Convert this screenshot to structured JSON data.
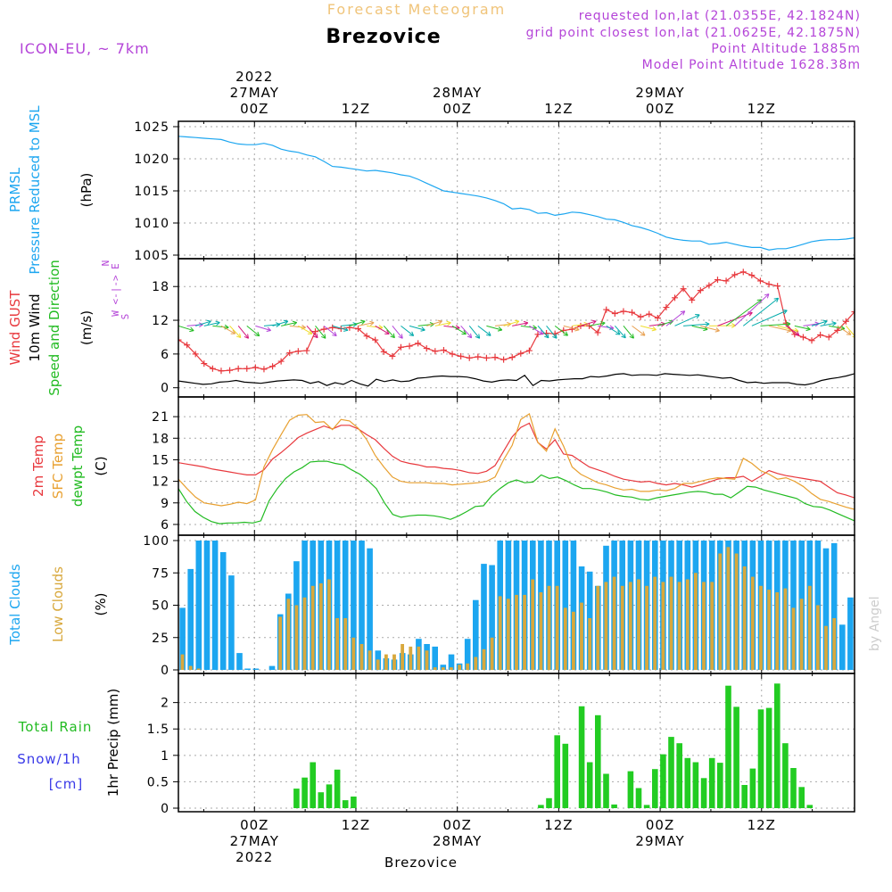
{
  "header": {
    "product_title": "Forecast Meteogram",
    "location": "Brezovice",
    "model": "ICON-EU, ~ 7km",
    "requested": "requested lon,lat (21.0355E, 42.1824N)",
    "closest": "grid point closest lon,lat (21.0625E, 42.1875N)",
    "point_alt": "Point Altitude 1885m",
    "model_alt": "Model Point Altitude 1628.38m",
    "footer_location": "Brezovice",
    "watermark": "by Angel"
  },
  "time_axis": {
    "top_labels": [
      {
        "lines": [
          "2022",
          "27MAY",
          "00Z"
        ],
        "hour": 9
      },
      {
        "lines": [
          "12Z"
        ],
        "hour": 21
      },
      {
        "lines": [
          "28MAY",
          "00Z"
        ],
        "hour": 33
      },
      {
        "lines": [
          "12Z"
        ],
        "hour": 45
      },
      {
        "lines": [
          "29MAY",
          "00Z"
        ],
        "hour": 57
      },
      {
        "lines": [
          "12Z"
        ],
        "hour": 69
      }
    ],
    "bottom_labels": [
      {
        "lines": [
          "00Z",
          "27MAY",
          "2022"
        ],
        "hour": 9
      },
      {
        "lines": [
          "12Z"
        ],
        "hour": 21
      },
      {
        "lines": [
          "00Z",
          "28MAY"
        ],
        "hour": 33
      },
      {
        "lines": [
          "12Z"
        ],
        "hour": 45
      },
      {
        "lines": [
          "00Z",
          "29MAY"
        ],
        "hour": 57
      },
      {
        "lines": [
          "12Z"
        ],
        "hour": 69
      }
    ],
    "grid_hours": [
      9,
      21,
      33,
      45,
      57,
      69
    ]
  },
  "chart_data": [
    {
      "id": "pressure",
      "type": "line",
      "ylabel_lines": [
        {
          "text": "PRMSL",
          "color": "#1ca6f0"
        },
        {
          "text": "Pressure Reduced to MSL",
          "color": "#1ca6f0"
        },
        {
          "text": "(hPa)",
          "color": "#000000"
        }
      ],
      "yticks": [
        "1005",
        "1010",
        "1015",
        "1020",
        "1025"
      ],
      "ylim": [
        1005,
        1025
      ],
      "series": [
        {
          "color": "#1ca6f0",
          "values": [
            1023.5,
            1023.4,
            1023.3,
            1023.2,
            1023.1,
            1023.0,
            1022.6,
            1022.3,
            1022.2,
            1022.2,
            1022.4,
            1022.1,
            1021.5,
            1021.2,
            1021.0,
            1020.6,
            1020.3,
            1019.6,
            1018.8,
            1018.7,
            1018.5,
            1018.3,
            1018.1,
            1018.2,
            1018.0,
            1017.8,
            1017.5,
            1017.3,
            1016.8,
            1016.2,
            1015.6,
            1015.0,
            1014.8,
            1014.6,
            1014.4,
            1014.2,
            1013.9,
            1013.5,
            1013.0,
            1012.2,
            1012.3,
            1012.1,
            1011.5,
            1011.6,
            1011.2,
            1011.4,
            1011.7,
            1011.6,
            1011.3,
            1011.0,
            1010.6,
            1010.5,
            1010.1,
            1009.6,
            1009.3,
            1008.9,
            1008.4,
            1007.8,
            1007.5,
            1007.3,
            1007.2,
            1007.2,
            1006.7,
            1006.8,
            1007.0,
            1006.7,
            1006.4,
            1006.2,
            1006.2,
            1005.8,
            1006.0,
            1006.0,
            1006.3,
            1006.7,
            1007.1,
            1007.3,
            1007.4,
            1007.4,
            1007.5,
            1007.7
          ]
        }
      ]
    },
    {
      "id": "wind",
      "type": "line",
      "ylabel_lines": [
        {
          "text": "Wind GUST",
          "color": "#e8383d"
        },
        {
          "text": "10m Wind",
          "color": "#000000"
        },
        {
          "text": "Speed and Direction",
          "color": "#22bb22"
        },
        {
          "text": "(m/s)",
          "color": "#000000"
        }
      ],
      "compass": {
        "lines": [
          "N",
          "^",
          "|",
          "W <-|-> E",
          "|",
          "v",
          "S"
        ],
        "color": "#b444d8"
      },
      "yticks": [
        "0",
        "6",
        "12",
        "18"
      ],
      "ylim": [
        -1,
        22
      ],
      "series": [
        {
          "name": "Wind GUST",
          "color": "#e8383d",
          "marker": "+",
          "values": [
            8.5,
            7.6,
            6.0,
            4.3,
            3.4,
            3.0,
            3.1,
            3.4,
            3.4,
            3.6,
            3.3,
            3.8,
            4.7,
            6.2,
            6.5,
            6.6,
            10.0,
            10.4,
            10.7,
            10.5,
            10.7,
            10.5,
            9.2,
            8.5,
            6.4,
            5.6,
            7.2,
            7.4,
            7.9,
            7.0,
            6.5,
            6.7,
            6.0,
            5.6,
            5.3,
            5.5,
            5.3,
            5.4,
            5.0,
            5.4,
            6.1,
            6.6,
            9.5,
            9.7,
            9.6,
            10.2,
            10.4,
            11.0,
            11.0,
            9.8,
            13.9,
            13.2,
            13.6,
            13.4,
            12.6,
            13.1,
            12.4,
            14.3,
            16.0,
            17.6,
            15.6,
            17.3,
            18.2,
            19.2,
            19.0,
            20.1,
            20.6,
            20.0,
            19.0,
            18.4,
            18.1,
            11.5,
            9.5,
            9.0,
            8.4,
            9.4,
            9.0,
            10.2,
            11.8,
            13.5
          ]
        },
        {
          "name": "10m Wind",
          "color": "#000000",
          "values": [
            1.2,
            1.0,
            0.8,
            0.6,
            0.7,
            1.0,
            1.1,
            1.3,
            1.0,
            0.9,
            0.8,
            1.0,
            1.2,
            1.3,
            1.4,
            1.3,
            0.8,
            1.1,
            0.4,
            0.9,
            0.6,
            1.3,
            0.7,
            0.3,
            1.5,
            1.1,
            1.4,
            1.1,
            1.2,
            1.7,
            1.8,
            2.0,
            2.1,
            2.0,
            2.0,
            1.9,
            1.6,
            1.2,
            1.0,
            1.3,
            1.4,
            1.3,
            2.2,
            0.4,
            1.3,
            1.2,
            1.4,
            1.5,
            1.6,
            1.6,
            2.0,
            1.9,
            2.1,
            2.4,
            2.5,
            2.2,
            2.3,
            2.3,
            2.2,
            2.5,
            2.4,
            2.3,
            2.2,
            2.3,
            2.1,
            1.9,
            1.7,
            1.8,
            1.3,
            0.9,
            1.0,
            0.8,
            0.9,
            0.9,
            0.9,
            0.6,
            0.5,
            0.8,
            1.3,
            1.6,
            1.8,
            2.1,
            2.5
          ]
        }
      ],
      "barb_colors": [
        "#22bb22",
        "#b444d8",
        "#00aaaa",
        "#00aaaa",
        "#22bb22",
        "#e8a050",
        "#f0dc2c",
        "#d4147a"
      ]
    },
    {
      "id": "temperature",
      "type": "line",
      "ylabel_lines": [
        {
          "text": "2m Temp",
          "color": "#e8383d"
        },
        {
          "text": "SFC Temp",
          "color": "#e8a030"
        },
        {
          "text": "dewpt Temp",
          "color": "#22bb22"
        },
        {
          "text": "(C)",
          "color": "#000000"
        }
      ],
      "yticks": [
        "6",
        "9",
        "12",
        "15",
        "18",
        "21"
      ],
      "ylim": [
        5,
        23
      ],
      "series": [
        {
          "name": "2m Temp",
          "color": "#e8383d",
          "values": [
            14.6,
            14.4,
            14.2,
            14.0,
            13.7,
            13.5,
            13.3,
            13.1,
            12.9,
            12.9,
            13.6,
            15.1,
            16.0,
            17.0,
            18.1,
            18.7,
            19.2,
            19.7,
            19.3,
            19.8,
            19.8,
            19.3,
            18.5,
            17.8,
            16.6,
            15.5,
            14.8,
            14.5,
            14.3,
            14.0,
            14.0,
            13.8,
            13.7,
            13.5,
            13.2,
            13.1,
            13.4,
            14.2,
            16.2,
            18.2,
            19.5,
            20.1,
            17.4,
            16.5,
            17.8,
            15.8,
            15.6,
            14.8,
            14.0,
            13.6,
            13.2,
            12.7,
            12.3,
            12.1,
            11.9,
            12.0,
            11.7,
            11.5,
            11.7,
            11.5,
            11.2,
            11.5,
            11.9,
            12.3,
            12.5,
            12.5,
            12.7,
            12.0,
            12.7,
            13.5,
            13.1,
            12.8,
            12.6,
            12.4,
            12.2,
            12.0,
            11.2,
            10.4,
            10.1,
            9.7
          ]
        },
        {
          "name": "SFC Temp",
          "color": "#e8a030",
          "values": [
            12.3,
            11.0,
            9.8,
            9.0,
            8.8,
            8.6,
            8.8,
            9.1,
            8.9,
            9.4,
            14.0,
            16.4,
            18.5,
            20.5,
            21.2,
            21.3,
            20.2,
            20.3,
            19.2,
            20.6,
            20.4,
            19.4,
            17.8,
            15.6,
            14.0,
            12.6,
            12.0,
            11.8,
            11.8,
            11.8,
            11.7,
            11.7,
            11.5,
            11.6,
            11.7,
            11.8,
            12.0,
            12.6,
            15.0,
            17.0,
            20.6,
            21.4,
            17.4,
            16.2,
            19.3,
            16.9,
            14.0,
            13.0,
            12.4,
            11.8,
            11.5,
            11.1,
            10.8,
            10.9,
            10.6,
            10.6,
            10.8,
            10.7,
            11.0,
            11.7,
            11.7,
            12.0,
            12.3,
            12.5,
            12.4,
            12.3,
            15.2,
            14.5,
            13.5,
            13.0,
            12.3,
            12.5,
            12.0,
            11.3,
            10.3,
            9.5,
            9.2,
            8.8,
            8.4,
            8.1
          ]
        },
        {
          "name": "dewpt Temp",
          "color": "#22bb22",
          "values": [
            11.0,
            9.2,
            7.8,
            7.0,
            6.4,
            6.1,
            6.2,
            6.2,
            6.3,
            6.2,
            6.5,
            9.3,
            11.0,
            12.4,
            13.3,
            13.9,
            14.7,
            14.8,
            14.8,
            14.5,
            14.3,
            13.6,
            13.0,
            12.1,
            11.0,
            9.0,
            7.4,
            7.0,
            7.2,
            7.3,
            7.3,
            7.2,
            7.0,
            6.7,
            7.2,
            7.8,
            8.5,
            8.6,
            10.0,
            11.0,
            11.8,
            12.2,
            11.8,
            11.9,
            12.9,
            12.4,
            12.6,
            12.1,
            11.5,
            11.0,
            11.0,
            10.8,
            10.5,
            10.1,
            9.9,
            9.8,
            9.5,
            9.4,
            9.7,
            9.9,
            10.1,
            10.3,
            10.5,
            10.6,
            10.5,
            10.2,
            10.2,
            9.7,
            10.5,
            11.3,
            11.2,
            10.8,
            10.5,
            10.2,
            9.9,
            9.6,
            8.9,
            8.5,
            8.4,
            8.0,
            7.5,
            7.0,
            6.5
          ]
        }
      ]
    },
    {
      "id": "clouds",
      "type": "bar",
      "ylabel_lines": [
        {
          "text": "Total Clouds",
          "color": "#1ca6f0"
        },
        {
          "text": "Low Clouds",
          "color": "#d8a83c"
        },
        {
          "text": "(%)",
          "color": "#000000"
        }
      ],
      "yticks": [
        "0",
        "25",
        "50",
        "75",
        "100"
      ],
      "ylim": [
        0,
        100
      ],
      "series": [
        {
          "name": "Total Clouds",
          "color": "#1ca6f0",
          "values": [
            48,
            78,
            100,
            100,
            100,
            91,
            73,
            13,
            1,
            1,
            0,
            3,
            43,
            59,
            84,
            100,
            100,
            100,
            100,
            100,
            100,
            100,
            100,
            94,
            15,
            9,
            8,
            13,
            12,
            24,
            20,
            18,
            4,
            12,
            5,
            24,
            54,
            82,
            81,
            100,
            100,
            100,
            100,
            100,
            100,
            100,
            100,
            100,
            100,
            80,
            76,
            65,
            96,
            100,
            100,
            100,
            100,
            100,
            100,
            100,
            100,
            100,
            100,
            100,
            100,
            100,
            100,
            100,
            100,
            100,
            100,
            100,
            100,
            100,
            100,
            100,
            100,
            100,
            100,
            94,
            98,
            35,
            56
          ]
        },
        {
          "name": "Low Clouds",
          "color": "#d8a83c",
          "values": [
            12,
            3,
            1,
            0,
            0,
            0,
            0,
            0,
            0,
            0,
            0,
            0,
            41,
            55,
            50,
            56,
            65,
            67,
            70,
            40,
            40,
            25,
            20,
            15,
            8,
            12,
            12,
            20,
            18,
            18,
            15,
            2,
            2,
            2,
            4,
            5,
            10,
            16,
            25,
            57,
            55,
            58,
            58,
            70,
            60,
            65,
            65,
            48,
            45,
            52,
            40,
            65,
            68,
            72,
            65,
            68,
            70,
            65,
            72,
            68,
            72,
            68,
            70,
            75,
            68,
            68,
            90,
            95,
            90,
            80,
            72,
            65,
            62,
            60,
            63,
            48,
            55,
            65,
            50,
            34,
            40
          ]
        }
      ]
    },
    {
      "id": "precip",
      "type": "bar",
      "ylabel_lines": [
        {
          "text": "1hr Precip (mm)",
          "color": "#000000"
        }
      ],
      "side_labels": [
        {
          "text": "Total  Rain",
          "color": "#22bb22"
        },
        {
          "text": "Snow/1h",
          "color": "#3a3ae8"
        },
        {
          "text": "[cm]",
          "color": "#3a3ae8"
        }
      ],
      "yticks": [
        "0",
        "0.5",
        "1",
        "1.5",
        "2"
      ],
      "ylim": [
        0,
        2.45
      ],
      "series": [
        {
          "name": "Total Rain",
          "color": "#22cc22",
          "values": [
            0,
            0,
            0,
            0,
            0,
            0,
            0,
            0,
            0,
            0,
            0,
            0,
            0,
            0,
            0.37,
            0.58,
            0.87,
            0.3,
            0.45,
            0.73,
            0.15,
            0.22,
            0,
            0,
            0,
            0,
            0,
            0,
            0,
            0,
            0,
            0,
            0,
            0,
            0,
            0,
            0,
            0,
            0,
            0,
            0,
            0,
            0,
            0,
            0.06,
            0.19,
            1.38,
            1.22,
            0,
            1.93,
            0.87,
            1.76,
            0.65,
            0.07,
            0,
            0.7,
            0.38,
            0.06,
            0.74,
            1.02,
            1.35,
            1.23,
            0.95,
            0.87,
            0.57,
            0.95,
            0.86,
            2.32,
            1.92,
            0.44,
            0.75,
            1.87,
            1.9,
            2.36,
            1.23,
            0.76,
            0.4,
            0.06,
            0,
            0,
            0,
            0,
            0
          ]
        }
      ]
    }
  ]
}
